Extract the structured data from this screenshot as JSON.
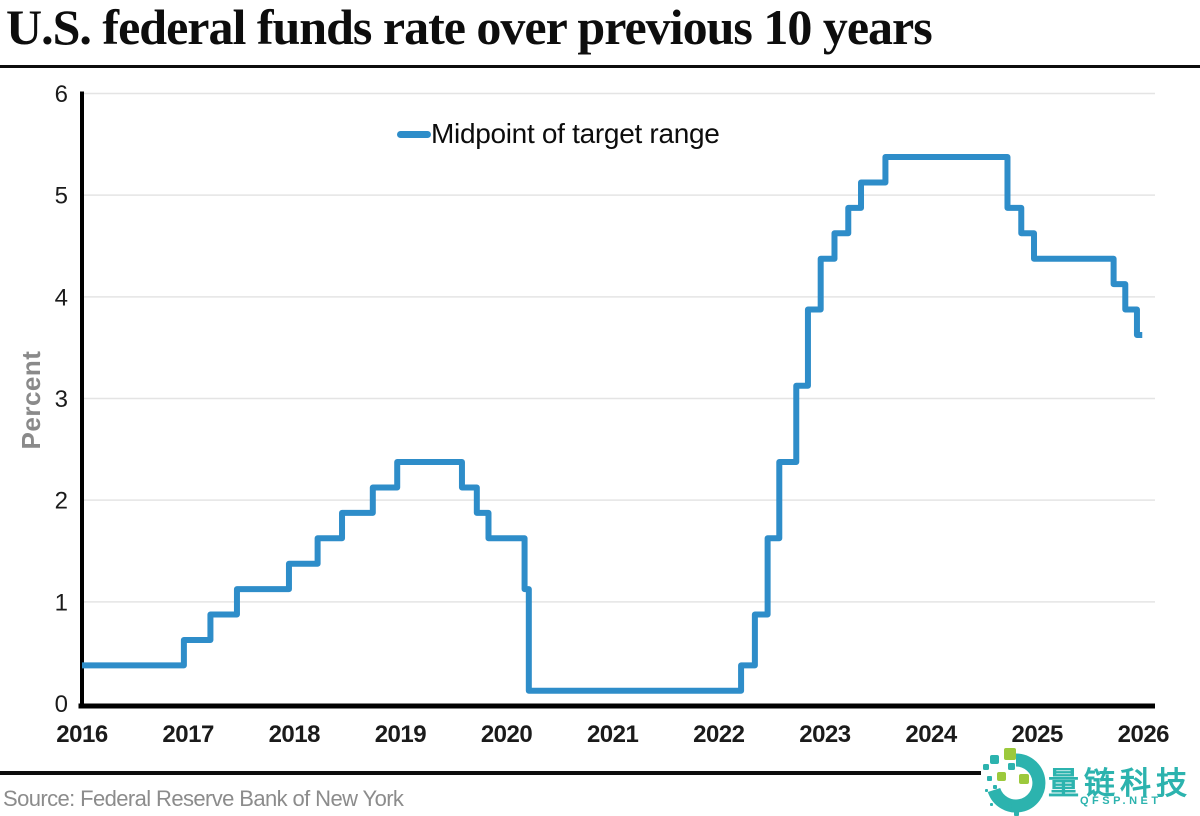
{
  "header": {
    "title": "U.S. federal funds rate over previous 10 years"
  },
  "chart_data": {
    "type": "line",
    "step_interpolation": "step-after",
    "title": "U.S. federal funds rate over previous 10 years",
    "ylabel": "Percent",
    "xlabel": "",
    "xlim": [
      2016,
      2026.11
    ],
    "ylim": [
      0,
      6
    ],
    "xticks": [
      "2016",
      "2017",
      "2018",
      "2019",
      "2020",
      "2021",
      "2022",
      "2023",
      "2024",
      "2025",
      "2026"
    ],
    "yticks": [
      "0",
      "1",
      "2",
      "3",
      "4",
      "5",
      "6"
    ],
    "grid": "horizontal",
    "legend_position": "top-center",
    "colors": {
      "line": "#2e8dc9",
      "gridline": "#e4e4e4",
      "axis": "#000000",
      "tick_label": "#1b1b1b"
    },
    "series": [
      {
        "name": "Midpoint of target range",
        "color": "#2e8dc9",
        "end_x": 2025.99,
        "points": [
          {
            "x": 2016.0,
            "y": 0.375
          },
          {
            "x": 2016.96,
            "y": 0.625
          },
          {
            "x": 2017.21,
            "y": 0.875
          },
          {
            "x": 2017.46,
            "y": 1.125
          },
          {
            "x": 2017.95,
            "y": 1.375
          },
          {
            "x": 2018.22,
            "y": 1.625
          },
          {
            "x": 2018.45,
            "y": 1.875
          },
          {
            "x": 2018.74,
            "y": 2.125
          },
          {
            "x": 2018.97,
            "y": 2.375
          },
          {
            "x": 2019.58,
            "y": 2.125
          },
          {
            "x": 2019.72,
            "y": 1.875
          },
          {
            "x": 2019.83,
            "y": 1.625
          },
          {
            "x": 2020.17,
            "y": 1.125
          },
          {
            "x": 2020.21,
            "y": 0.125
          },
          {
            "x": 2022.21,
            "y": 0.375
          },
          {
            "x": 2022.34,
            "y": 0.875
          },
          {
            "x": 2022.46,
            "y": 1.625
          },
          {
            "x": 2022.57,
            "y": 2.375
          },
          {
            "x": 2022.73,
            "y": 3.125
          },
          {
            "x": 2022.84,
            "y": 3.875
          },
          {
            "x": 2022.96,
            "y": 4.375
          },
          {
            "x": 2023.09,
            "y": 4.625
          },
          {
            "x": 2023.22,
            "y": 4.875
          },
          {
            "x": 2023.34,
            "y": 5.125
          },
          {
            "x": 2023.57,
            "y": 5.375
          },
          {
            "x": 2024.72,
            "y": 4.875
          },
          {
            "x": 2024.85,
            "y": 4.625
          },
          {
            "x": 2024.97,
            "y": 4.375
          },
          {
            "x": 2025.72,
            "y": 4.125
          },
          {
            "x": 2025.83,
            "y": 3.875
          },
          {
            "x": 2025.94,
            "y": 3.625
          }
        ]
      }
    ]
  },
  "legend": {
    "label": "Midpoint of target range",
    "swatch_color": "#2e8dc9"
  },
  "footer": {
    "source": "Source: Federal Reserve Bank of New York"
  },
  "watermark": {
    "name": "量链科技",
    "url_text": "QFSP.NET",
    "teal": "#2cb3ae",
    "green": "#9cc93c"
  }
}
